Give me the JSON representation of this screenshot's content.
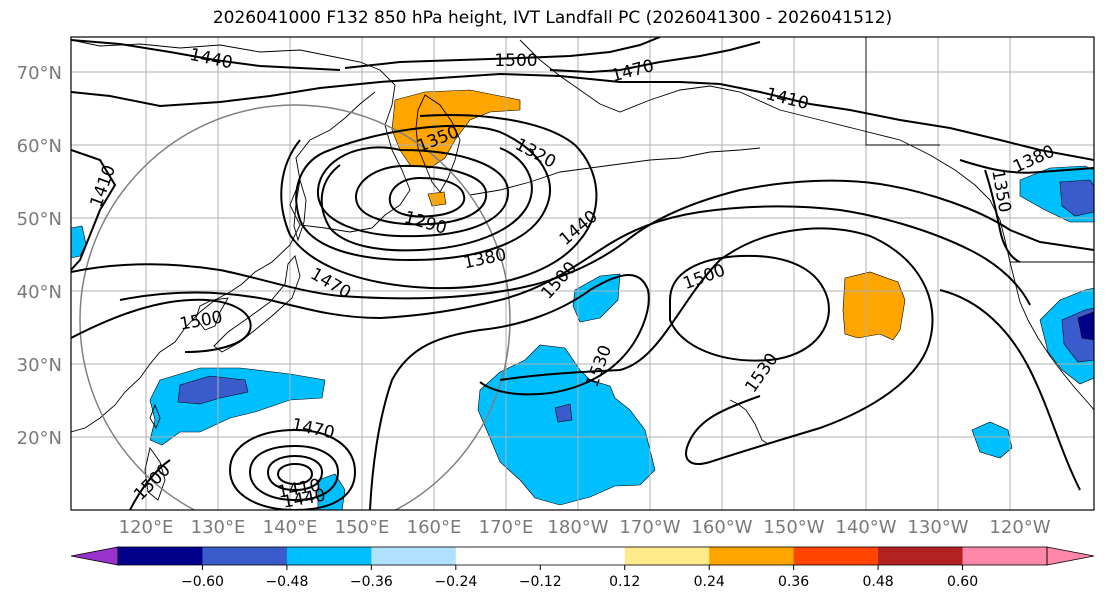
{
  "title": "2026041000 F132 850 hPa height, IVT Landfall PC (2026041300 - 2026041512)",
  "colors": {
    "c_violet": "#9932CC",
    "c_navy": "#00008B",
    "c_royal": "#3A5BCB",
    "c_deepsky": "#00BFFF",
    "c_lightsky": "#B0E2FF",
    "c_white": "#FFFFFF",
    "c_lightyellow": "#FFEB8A",
    "c_orange": "#FFA500",
    "c_orangered": "#FF4500",
    "c_firebrick": "#B22222",
    "c_pink": "#FF88AA",
    "contour": "#000000",
    "coast": "#000000",
    "grid": "#b0b0b0",
    "circle": "#808080"
  },
  "lat_labels": [
    "70°N",
    "60°N",
    "50°N",
    "40°N",
    "30°N",
    "20°N"
  ],
  "lon_labels": [
    "120°E",
    "130°E",
    "140°E",
    "150°E",
    "160°E",
    "170°E",
    "180°W",
    "170°W",
    "160°W",
    "150°W",
    "140°W",
    "130°W",
    "120°W"
  ],
  "contour_labels": [
    "1440",
    "1500",
    "1470",
    "1410",
    "1410",
    "1350",
    "1320",
    "1290",
    "1380",
    "1440",
    "1500",
    "1500",
    "1380",
    "1350",
    "1470",
    "1500",
    "1530",
    "1530",
    "1470",
    "1410",
    "1440",
    "1500"
  ],
  "colorbar": {
    "ticks": [
      "−0.60",
      "−0.48",
      "−0.36",
      "−0.24",
      "−0.12",
      "0.12",
      "0.24",
      "0.36",
      "0.48",
      "0.60"
    ],
    "colors": [
      "#00008B",
      "#3A5BCB",
      "#00BFFF",
      "#B0E2FF",
      "#FFFFFF",
      "#FFFFFF",
      "#FFEB8A",
      "#FFA500",
      "#FF4500",
      "#B22222"
    ],
    "under_color": "#9932CC",
    "over_color": "#FF88AA"
  }
}
